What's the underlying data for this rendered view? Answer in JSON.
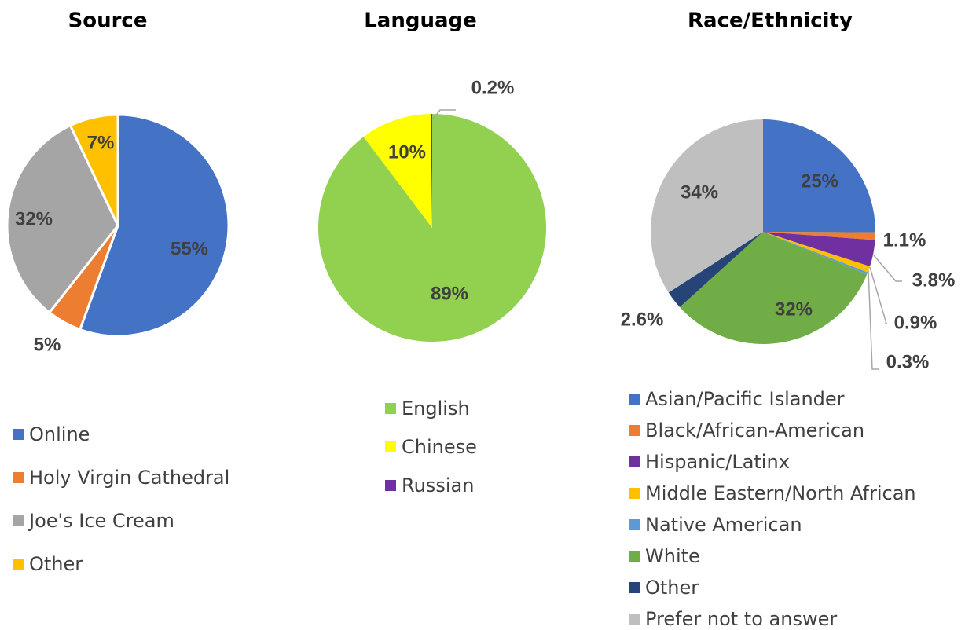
{
  "chart_data": [
    {
      "type": "pie",
      "title": "Source",
      "categories": [
        "Online",
        "Holy Virgin Cathedral",
        "Joe's Ice Cream",
        "Other"
      ],
      "values": [
        55,
        5,
        32,
        7
      ],
      "value_labels": [
        "55%",
        "5%",
        "32%",
        "7%"
      ],
      "colors": [
        "#4472c4",
        "#ed7d31",
        "#a5a5a5",
        "#ffc000"
      ]
    },
    {
      "type": "pie",
      "title": "Language",
      "categories": [
        "English",
        "Chinese",
        "Russian"
      ],
      "values": [
        89,
        10,
        0.2
      ],
      "value_labels": [
        "89%",
        "10%",
        "0.2%"
      ],
      "colors": [
        "#92d050",
        "#ffff00",
        "#7030a0"
      ]
    },
    {
      "type": "pie",
      "title": "Race/Ethnicity",
      "categories": [
        "Asian/Pacific Islander",
        "Black/African-American",
        "Hispanic/Latinx",
        "Middle Eastern/North African",
        "Native American",
        "White",
        "Other",
        "Prefer not to answer"
      ],
      "values": [
        25,
        1.1,
        3.8,
        0.9,
        0.3,
        32,
        2.6,
        34
      ],
      "value_labels": [
        "25%",
        "1.1%",
        "3.8%",
        "0.9%",
        "0.3%",
        "32%",
        "2.6%",
        "34%"
      ],
      "colors": [
        "#4472c4",
        "#ed7d31",
        "#7030a0",
        "#ffc000",
        "#5b9bd5",
        "#70ad47",
        "#264478",
        "#bfbfbf"
      ]
    }
  ]
}
